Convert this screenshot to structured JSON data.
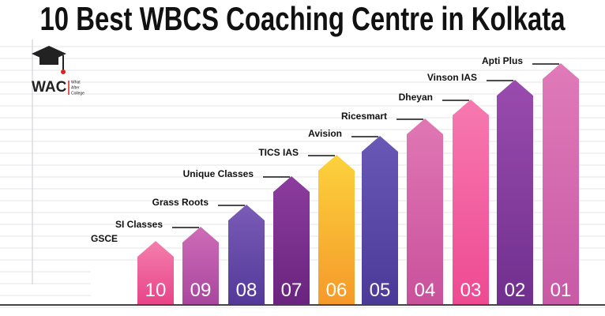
{
  "header": {
    "title": "10 Best WBCS Coaching Centre in Kolkata"
  },
  "logo": {
    "name": "WAC",
    "tagline": [
      "What",
      "After",
      "College"
    ]
  },
  "items": [
    {
      "label": "GSCE",
      "rank": "10"
    },
    {
      "label": "SI Classes",
      "rank": "09"
    },
    {
      "label": "Grass Roots",
      "rank": "08"
    },
    {
      "label": "Unique Classes",
      "rank": "07"
    },
    {
      "label": "TICS IAS",
      "rank": "06"
    },
    {
      "label": "Avision",
      "rank": "05"
    },
    {
      "label": "Ricesmart",
      "rank": "04"
    },
    {
      "label": "Dheyan",
      "rank": "03"
    },
    {
      "label": "Vinson IAS",
      "rank": "02"
    },
    {
      "label": "Apti Plus",
      "rank": "01"
    }
  ]
}
